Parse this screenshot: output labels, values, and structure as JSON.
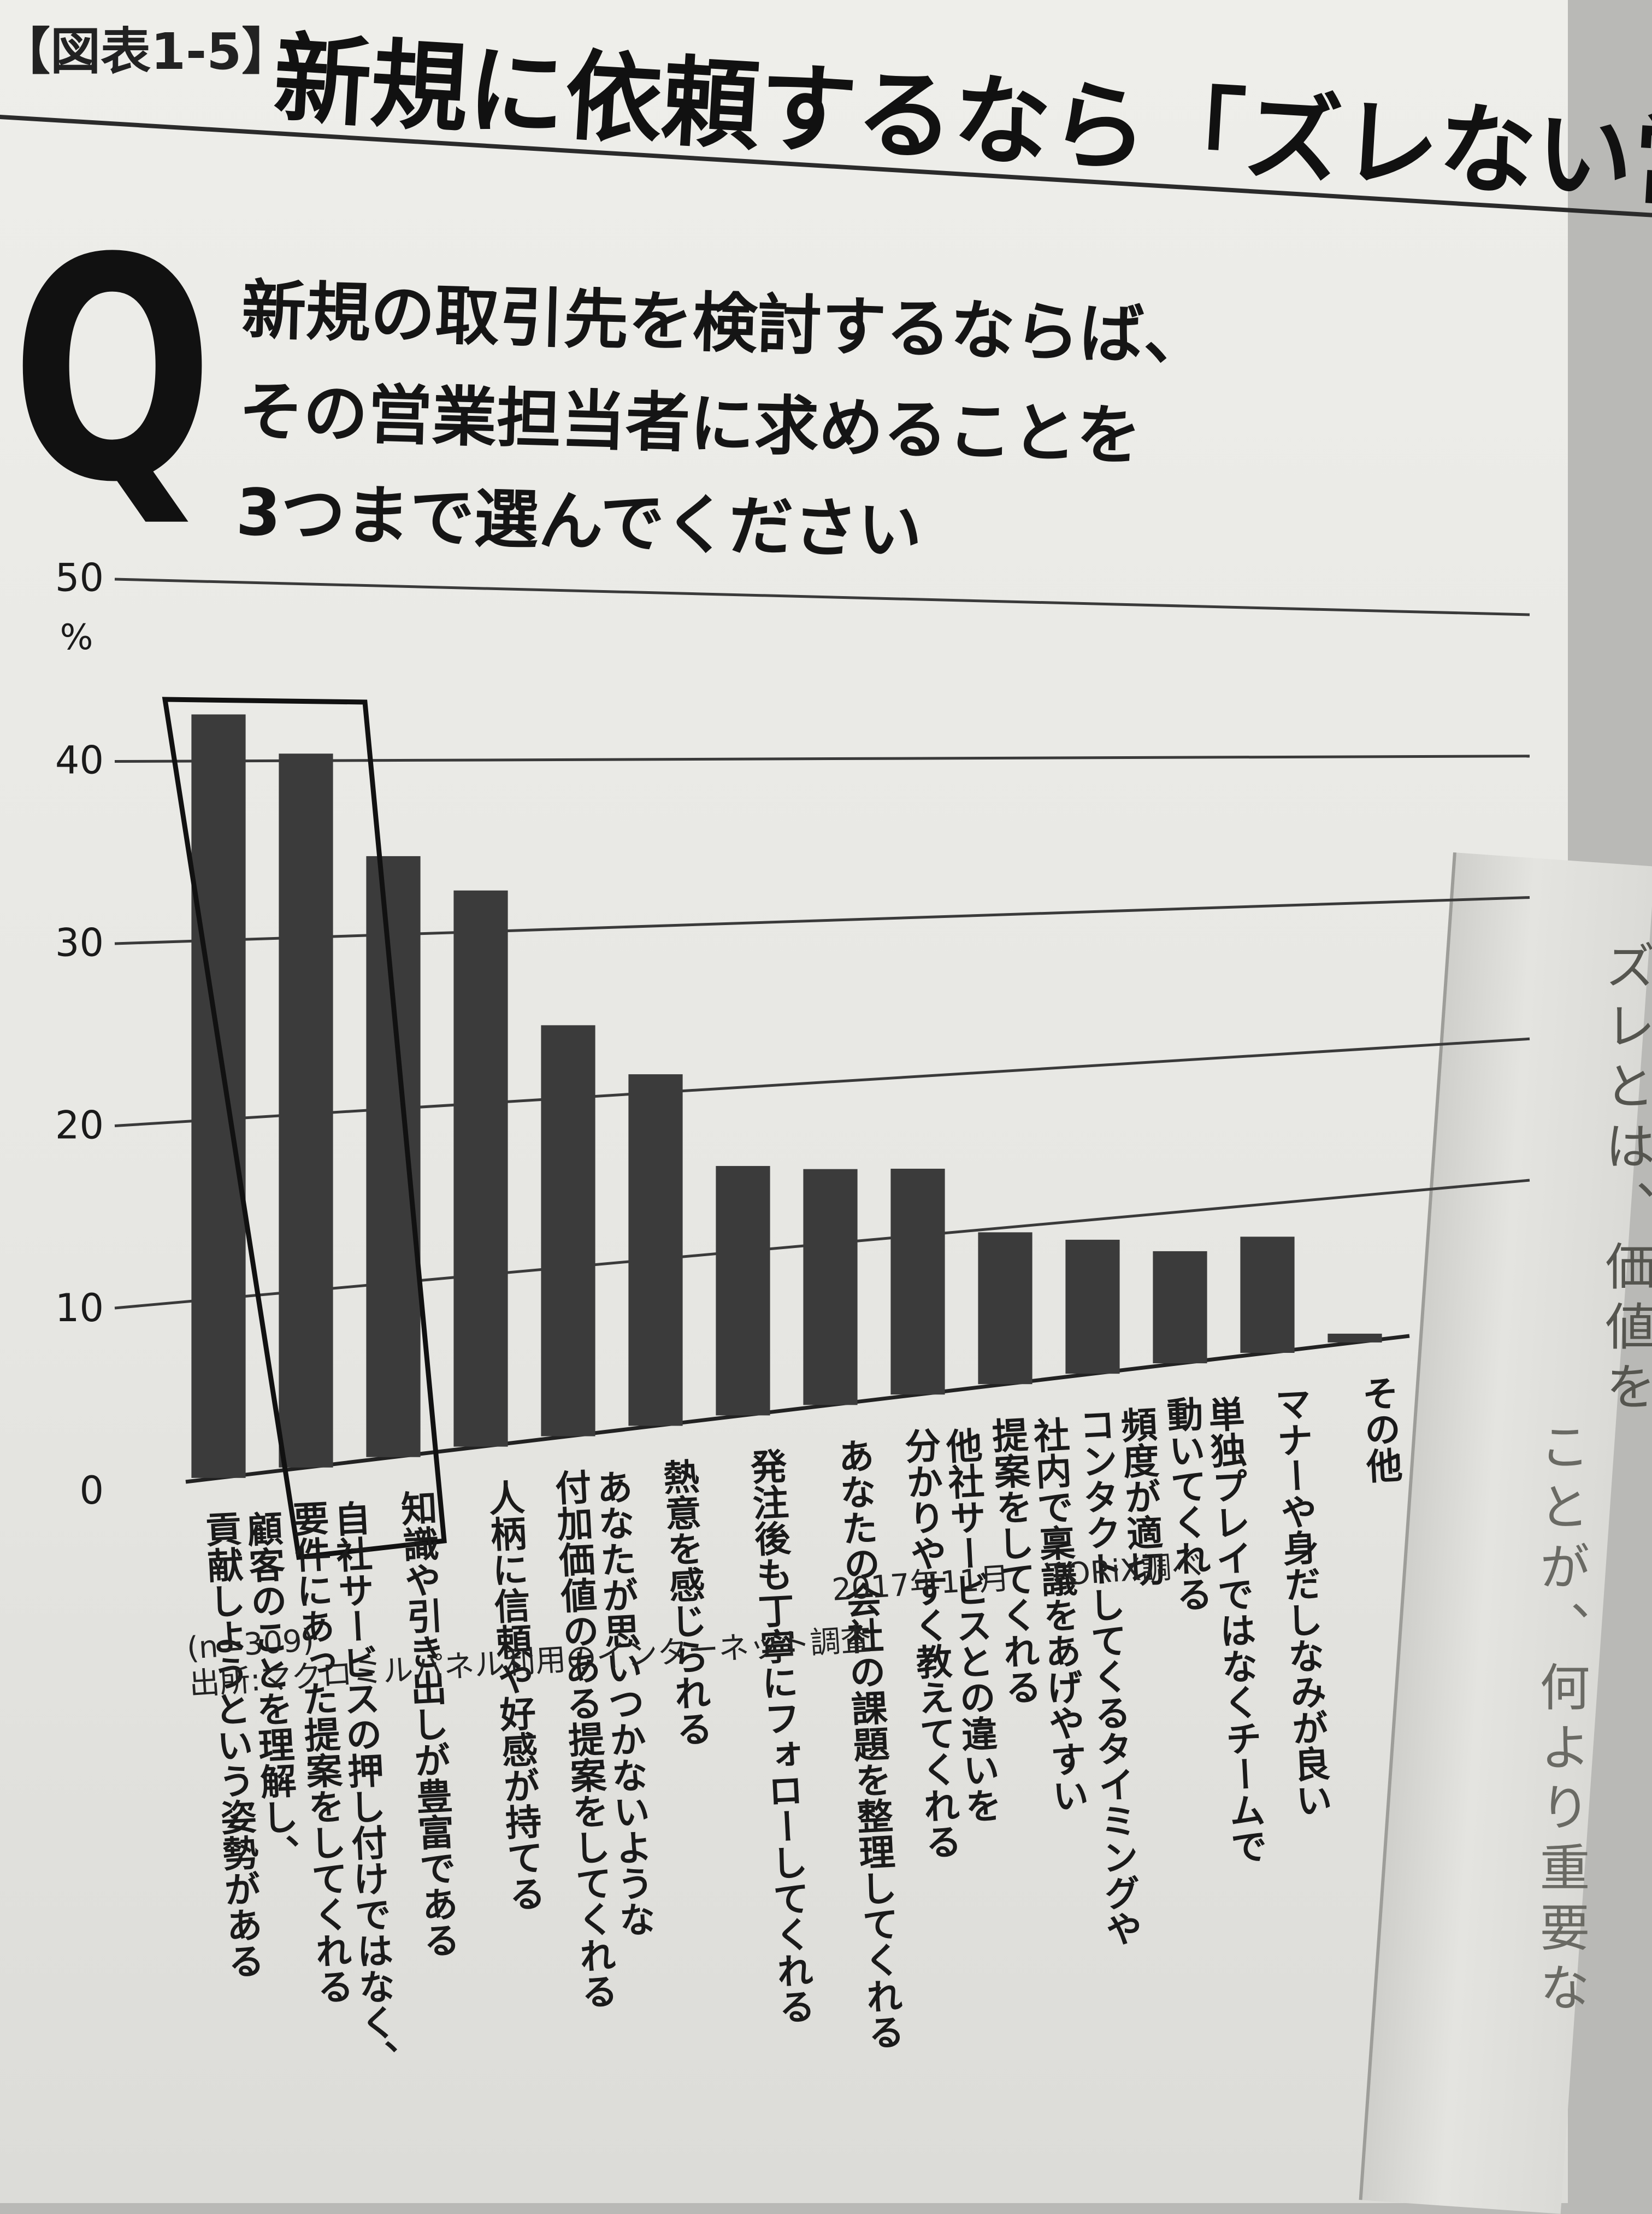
{
  "header": {
    "figure_label": "【図表1-5】",
    "title": "新規に依頼するなら「ズレない営業」"
  },
  "question": {
    "mark": "Q",
    "lines": [
      "新規の取引先を検討するならば、",
      "その営業担当者に求めることを",
      "3つまで選んでください"
    ]
  },
  "chart_data": {
    "type": "bar",
    "y_unit": "%",
    "ylim": [
      0,
      50
    ],
    "yticks": [
      0,
      10,
      20,
      30,
      40,
      50
    ],
    "grid": true,
    "highlighted_categories": [
      0,
      1
    ],
    "categories": [
      "顧客のことを理解し、貢献しようという姿勢がある",
      "自社サービスの押し付けではなく、要件にあった提案をしてくれる",
      "知識や引き出しが豊富である",
      "人柄に信頼や好感が持てる",
      "あなたが思いつかないような付加価値のある提案をしてくれる",
      "熱意を感じられる",
      "発注後も丁寧にフォローしてくれる",
      "あなたの会社の課題を整理してくれる",
      "他社サービスとの違いを分かりやすく教えてくれる",
      "社内で稟議をあげやすい提案をしてくれる",
      "頻度が適切コンタクトしてくるタイミングや",
      "単独プレイではなくチームで動いてくれる",
      "マナーや身だしなみが良い",
      "その他"
    ],
    "label_lines": [
      [
        "顧客のことを理解し、",
        "貢献しようという姿勢がある"
      ],
      [
        "自社サービスの押し付けではなく、",
        "要件にあった提案をしてくれる"
      ],
      [
        "知識や引き出しが豊富である"
      ],
      [
        "人柄に信頼や好感が持てる"
      ],
      [
        "あなたが思いつかないような",
        "付加価値のある提案をしてくれる"
      ],
      [
        "熱意を感じられる"
      ],
      [
        "発注後も丁寧にフォローしてくれる"
      ],
      [
        "あなたの会社の課題を整理してくれる"
      ],
      [
        "他社サービスとの違いを",
        "分かりやすく教えてくれる"
      ],
      [
        "社内で稟議をあげやすい",
        "提案をしてくれる"
      ],
      [
        "頻度が適切",
        "コンタクトしてくるタイミングや"
      ],
      [
        "単独プレイではなくチームで",
        "動いてくれる"
      ],
      [
        "マナーや身だしなみが良い"
      ],
      [
        "その他"
      ]
    ],
    "values": [
      42.6,
      40.4,
      34.5,
      32.4,
      24.3,
      21.1,
      15.2,
      14.6,
      14.2,
      9.7,
      8.7,
      7.4,
      7.8,
      0.6
    ]
  },
  "footer": {
    "sample": "(n=309)",
    "source": "出所:マクロミルパネル利用のインターネット調査",
    "date": "2017年11月",
    "research": "TORiX調べ"
  },
  "next_page": {
    "text_right": "ズレとは、価値を",
    "text_left": "ことが、何より重要な"
  }
}
